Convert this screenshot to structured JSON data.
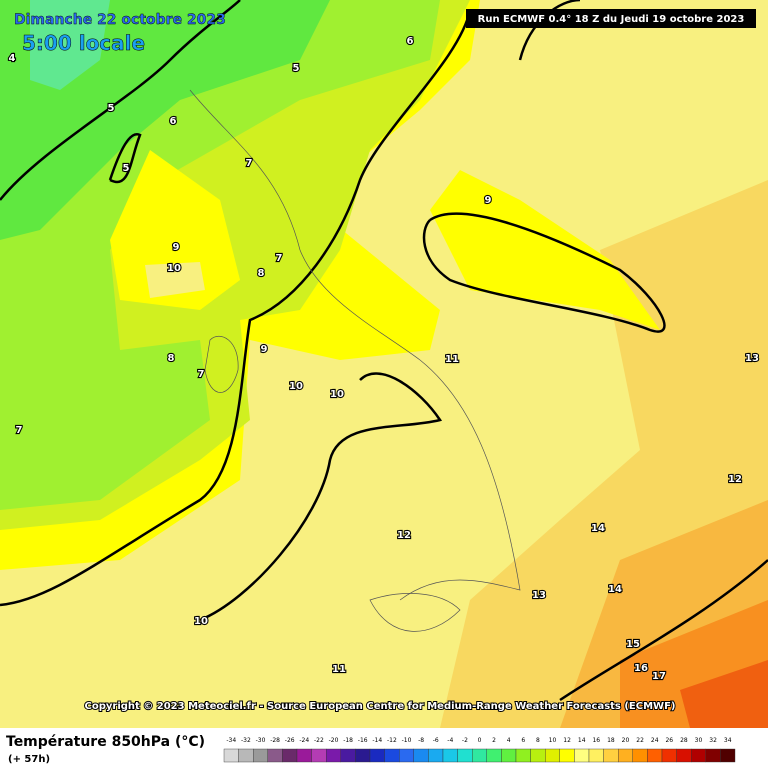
{
  "header": {
    "title": "Dimanche 22 octobre 2023",
    "time": "5:00 locale",
    "run": "Run ECMWF 0.4° 18 Z du Jeudi 19 octobre 2023"
  },
  "contour_labels": [
    4,
    5,
    6,
    5,
    6,
    7,
    5,
    9,
    10,
    8,
    7,
    9,
    8,
    7,
    9,
    10,
    10,
    11,
    7,
    13,
    12,
    14,
    12,
    14,
    13,
    10,
    15,
    16,
    17,
    11
  ],
  "copyright": "Copyright © 2023 Meteociel.fr - Source European Centre for Medium-Range Weather Forecasts (ECMWF)",
  "footer": {
    "variable": "Température 850hPa (°C)",
    "lead": "(+ 57h)"
  },
  "scale": {
    "labels": [
      -34,
      -32,
      -30,
      -28,
      -26,
      -24,
      -22,
      -20,
      -18,
      -16,
      -14,
      -12,
      -10,
      -8,
      -6,
      -4,
      -2,
      0,
      2,
      4,
      6,
      8,
      10,
      12,
      14,
      16,
      18,
      20,
      22,
      24,
      26,
      28,
      30,
      32,
      34
    ],
    "colors": [
      "#d8d8d8",
      "#b8b8b8",
      "#9a9a9a",
      "#8a5a8a",
      "#6a2a6a",
      "#9a1a9a",
      "#b43cb4",
      "#7a1aaa",
      "#4a1aa0",
      "#2a1a90",
      "#1a2ac0",
      "#1a4ae0",
      "#2a6af0",
      "#1a8af0",
      "#1aaaf0",
      "#1ac8e8",
      "#20e0d0",
      "#30e8a0",
      "#40f070",
      "#60f040",
      "#90f020",
      "#b8f010",
      "#e0f000",
      "#ffff00",
      "#ffff80",
      "#fff060",
      "#ffd040",
      "#ffb020",
      "#ff9000",
      "#ff6000",
      "#f03000",
      "#d81000",
      "#b00000",
      "#800000",
      "#500000"
    ]
  }
}
